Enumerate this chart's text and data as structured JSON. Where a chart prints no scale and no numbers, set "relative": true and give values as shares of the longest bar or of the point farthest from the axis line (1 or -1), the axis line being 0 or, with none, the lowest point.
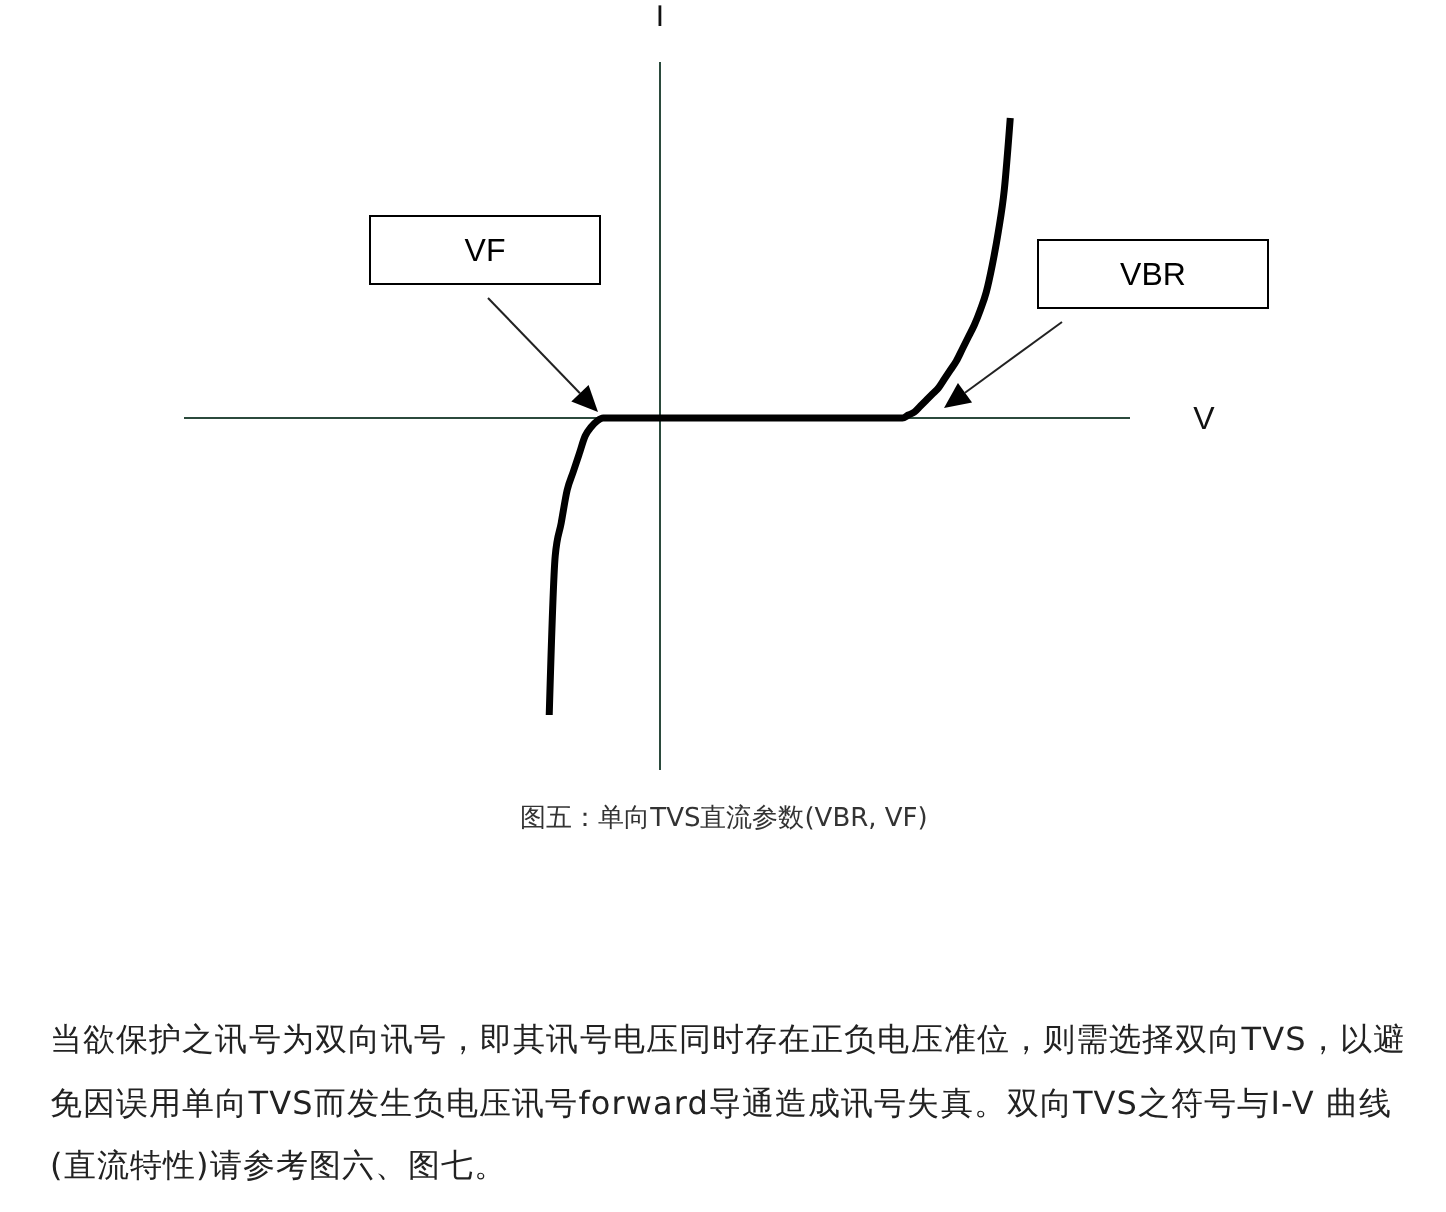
{
  "chart_data": {
    "type": "line",
    "title": "图五：单向TVS直流参数(VBR, VF)",
    "xlabel": "V",
    "ylabel": "I",
    "relative": true,
    "categories": [
      null,
      null,
      null,
      null,
      null,
      null,
      null,
      null,
      null,
      null,
      null,
      null,
      null,
      null,
      null,
      null,
      null,
      null,
      null,
      null,
      null,
      null,
      null,
      null,
      null,
      null,
      null,
      null,
      null,
      null,
      null,
      null,
      null,
      null,
      null,
      null,
      null,
      null,
      null,
      null,
      null,
      null,
      null,
      null,
      null,
      null,
      null,
      null,
      null,
      null,
      null,
      null,
      null,
      null,
      null,
      null,
      null,
      null,
      null,
      null,
      null,
      null,
      null,
      null,
      null,
      null,
      null,
      null,
      null,
      null,
      null,
      null,
      null,
      null,
      null,
      null,
      null,
      null,
      null,
      null,
      null,
      null,
      null,
      null,
      null,
      null,
      null,
      null,
      null,
      null,
      null,
      null,
      null,
      null,
      null,
      null,
      null,
      null,
      null,
      null,
      null,
      null,
      null,
      null,
      null,
      null,
      null,
      null,
      null,
      null,
      null,
      null,
      null,
      null,
      null,
      null,
      null,
      null,
      null,
      null,
      null,
      null,
      null,
      null,
      null,
      null,
      null,
      null,
      null,
      null,
      null,
      null,
      null,
      null,
      null,
      null,
      null,
      null,
      null,
      null,
      null,
      null,
      null,
      null,
      null,
      null,
      null,
      null,
      null,
      null,
      null,
      null,
      null,
      null,
      null,
      null,
      null,
      null,
      null
    ],
    "values": [
      null,
      null,
      null,
      null,
      null,
      null,
      null,
      null,
      null,
      null,
      null,
      null,
      null,
      null,
      null,
      null,
      null,
      null,
      null,
      null,
      null,
      null,
      null,
      null,
      null,
      null,
      null,
      null,
      null,
      null,
      null,
      null,
      null,
      null,
      null,
      null,
      null,
      null,
      null,
      null,
      null,
      null,
      null,
      null,
      null,
      null,
      null,
      null,
      null,
      null,
      null,
      null,
      null,
      null,
      null,
      null,
      null,
      null,
      null,
      null,
      null,
      -0.99,
      -0.46,
      -0.35,
      -0.24,
      -0.18,
      -0.12,
      -0.06,
      -0.03,
      -0.01,
      0,
      0,
      0,
      0,
      0,
      0,
      0,
      0,
      0,
      0,
      0,
      0,
      0,
      0,
      0,
      0,
      0,
      0,
      0,
      0,
      0,
      0,
      0,
      0,
      0,
      0,
      0,
      0,
      0,
      0,
      0,
      0,
      0,
      0,
      0,
      0,
      0,
      0,
      0,
      0,
      0,
      0,
      0,
      0,
      0,
      0,
      0,
      0,
      0,
      0,
      0,
      0.01,
      0.02,
      0.04,
      0.06,
      0.08,
      0.1,
      0.13,
      0.16,
      0.19,
      0.23,
      0.27,
      0.31,
      0.36,
      0.42,
      0.51,
      0.62,
      0.76,
      1,
      null,
      null,
      null,
      null,
      null,
      null,
      null,
      null,
      null,
      null,
      null,
      null,
      null,
      null,
      null,
      null,
      null,
      null,
      null,
      null
    ],
    "color": "#000000",
    "annotations": [
      "VF",
      "VBR",
      "当欲保护之讯号为双向讯号，即其讯号电压同时存在正负电压准位，则需选择双向TVS，以避免因误用单向TVS而发生负电压讯号forward导通造成讯号失真。双向TVS之符号与I-V 曲线(直流特性)请参考图六、图七。"
    ]
  }
}
